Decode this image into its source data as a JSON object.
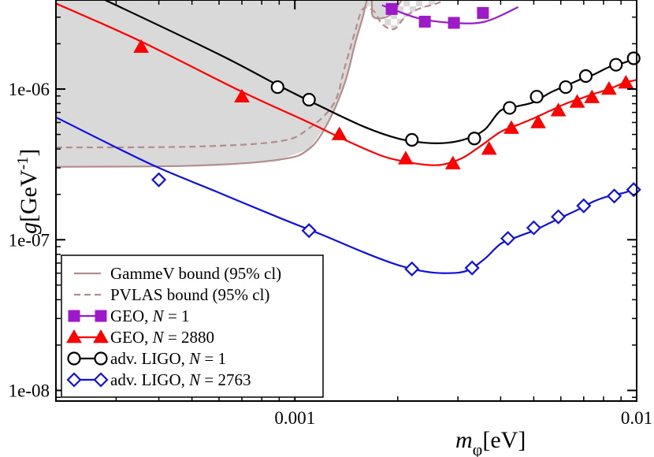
{
  "chart_data": {
    "type": "line",
    "title": "",
    "x_scale": "log",
    "y_scale": "log",
    "xlim": [
      0.0002,
      0.01
    ],
    "ylim": [
      8.5e-09,
      3.9e-06
    ],
    "xlabel": {
      "main": "m",
      "sub": "φ",
      "unit": "[eV]"
    },
    "ylabel": {
      "main": "g",
      "unit": "[GeV",
      "exp": "-1",
      "close": "]"
    },
    "x_ticks": [
      {
        "value": 0.001,
        "label": "0.001"
      },
      {
        "value": 0.01,
        "label": "0.01"
      }
    ],
    "y_ticks": [
      {
        "value": 1e-08,
        "label": "1e-08"
      },
      {
        "value": 1e-07,
        "label": "1e-07"
      },
      {
        "value": 1e-06,
        "label": "1e-06"
      }
    ],
    "grid": false,
    "legend_position": "bottom-left",
    "regions": [
      {
        "name": "GammeV bound (95% cl)",
        "style": "solid",
        "color": "#b48c8c",
        "fill": "#d9d9d9",
        "x": [
          0.0002,
          0.0005,
          0.0009,
          0.0011,
          0.00125,
          0.0014,
          0.0015,
          0.00158,
          0.00162,
          0.00165,
          0.00168,
          0.0017,
          0.0019,
          0.0021
        ],
        "y": [
          3.05e-07,
          3.1e-07,
          3.4e-07,
          4e-07,
          6e-07,
          1.1e-06,
          2e-06,
          3e-06,
          3.8e-06,
          4.2e-06,
          3.8e-06,
          3e-06,
          3.1e-06,
          4.2e-06
        ]
      },
      {
        "name": "PVLAS bound (95% cl)",
        "style": "dashed",
        "color": "#b48c8c",
        "x": [
          0.0002,
          0.0005,
          0.0009,
          0.0011,
          0.0013,
          0.0014,
          0.0015,
          0.00158,
          0.0017,
          0.0018,
          0.00195,
          0.0021,
          0.0023,
          0.0026,
          0.0028
        ],
        "y": [
          4.1e-07,
          4.15e-07,
          4.5e-07,
          5.5e-07,
          8e-07,
          1.4e-06,
          2.4e-06,
          3.4e-06,
          3.3e-06,
          2.7e-06,
          2.5e-06,
          3e-06,
          3.4e-06,
          3.7e-06,
          4e-06
        ]
      }
    ],
    "series": [
      {
        "name": "GEO, N = 1",
        "label_parts": [
          "GEO, ",
          "N",
          " = 1"
        ],
        "color": "#9c1ac9",
        "marker": "square-filled",
        "x": [
          0.0018,
          0.0023,
          0.0029,
          0.0036,
          0.0045
        ],
        "y": [
          3.6e-06,
          2.95e-06,
          2.75e-06,
          2.8e-06,
          3.5e-06
        ],
        "markers_x": [
          0.00192,
          0.0024,
          0.00292,
          0.00355
        ],
        "markers_y": [
          3.4e-06,
          2.8e-06,
          2.75e-06,
          3.2e-06
        ]
      },
      {
        "name": "GEO, N = 2880",
        "label_parts": [
          "GEO, ",
          "N",
          " = 2880"
        ],
        "color": "#ff0000",
        "marker": "triangle-filled",
        "x": [
          0.0002,
          0.00035,
          0.0007,
          0.0011,
          0.0014,
          0.0018,
          0.0021,
          0.0024,
          0.0027,
          0.0031,
          0.0035,
          0.004,
          0.0045,
          0.005,
          0.0056,
          0.0062,
          0.0068,
          0.0075,
          0.0083,
          0.0092,
          0.01
        ],
        "y": [
          3.7e-06,
          2.1e-06,
          9.6e-07,
          6e-07,
          4.6e-07,
          3.6e-07,
          3.3e-07,
          3.15e-07,
          3.15e-07,
          3.5e-07,
          4.2e-07,
          5.2e-07,
          5.8e-07,
          6.4e-07,
          7.2e-07,
          8e-07,
          8.6e-07,
          9.3e-07,
          1e-06,
          1.1e-06,
          1.15e-06
        ],
        "markers_x": [
          0.000355,
          0.0007,
          0.00135,
          0.00211,
          0.0029,
          0.0037,
          0.0043,
          0.00515,
          0.0059,
          0.0067,
          0.0074,
          0.0083,
          0.0093
        ],
        "markers_y": [
          1.9e-06,
          8.9e-07,
          5e-07,
          3.45e-07,
          3.2e-07,
          4e-07,
          5.5e-07,
          6e-07,
          7.2e-07,
          8.2e-07,
          8.8e-07,
          1e-06,
          1.1e-06
        ]
      },
      {
        "name": "adv. LIGO, N = 1",
        "label_parts": [
          "adv. LIGO, ",
          "N",
          " = 1"
        ],
        "color": "#000000",
        "marker": "circle-open",
        "x": [
          0.0002,
          0.0003,
          0.0006,
          0.0009,
          0.0012,
          0.0016,
          0.002,
          0.0024,
          0.0028,
          0.0032,
          0.0036,
          0.004,
          0.0045,
          0.005,
          0.0056,
          0.0062,
          0.0068,
          0.0075,
          0.0083,
          0.0092,
          0.01
        ],
        "y": [
          5.5e-06,
          3.6e-06,
          1.7e-06,
          1.05e-06,
          7.6e-07,
          5.6e-07,
          4.7e-07,
          4.4e-07,
          4.4e-07,
          4.7e-07,
          5.4e-07,
          7.2e-07,
          7.7e-07,
          8.2e-07,
          9.5e-07,
          1.05e-06,
          1.15e-06,
          1.25e-06,
          1.4e-06,
          1.5e-06,
          1.6e-06
        ],
        "markers_x": [
          0.00089,
          0.0011,
          0.0022,
          0.00335,
          0.00425,
          0.0051,
          0.0062,
          0.0071,
          0.0087,
          0.0098
        ],
        "markers_y": [
          1.03e-06,
          8.5e-07,
          4.6e-07,
          4.7e-07,
          7.5e-07,
          8.9e-07,
          1.03e-06,
          1.22e-06,
          1.45e-06,
          1.6e-06
        ]
      },
      {
        "name": "adv. LIGO, N = 2763",
        "label_parts": [
          "adv. LIGO, ",
          "N",
          " = 2763"
        ],
        "color": "#1010e0",
        "marker": "diamond-open",
        "x": [
          0.0002,
          0.0003,
          0.0004,
          0.0006,
          0.0009,
          0.0012,
          0.0016,
          0.002,
          0.0024,
          0.0028,
          0.0032,
          0.0036,
          0.004,
          0.0045,
          0.005,
          0.0056,
          0.0062,
          0.0068,
          0.0075,
          0.0083,
          0.0092,
          0.01
        ],
        "y": [
          6.5e-07,
          4.1e-07,
          3e-07,
          2.05e-07,
          1.4e-07,
          1.08e-07,
          8.2e-08,
          6.8e-08,
          6.15e-08,
          6e-08,
          6.25e-08,
          7.5e-08,
          9.4e-08,
          1.05e-07,
          1.15e-07,
          1.3e-07,
          1.45e-07,
          1.6e-07,
          1.8e-07,
          1.95e-07,
          2.05e-07,
          2.2e-07
        ],
        "markers_x": [
          0.0004,
          0.0011,
          0.0022,
          0.0033,
          0.0042,
          0.005,
          0.0059,
          0.007,
          0.0086,
          0.0098
        ],
        "markers_y": [
          2.5e-07,
          1.15e-07,
          6.4e-08,
          6.5e-08,
          1.02e-07,
          1.2e-07,
          1.42e-07,
          1.68e-07,
          1.95e-07,
          2.15e-07
        ]
      }
    ]
  }
}
